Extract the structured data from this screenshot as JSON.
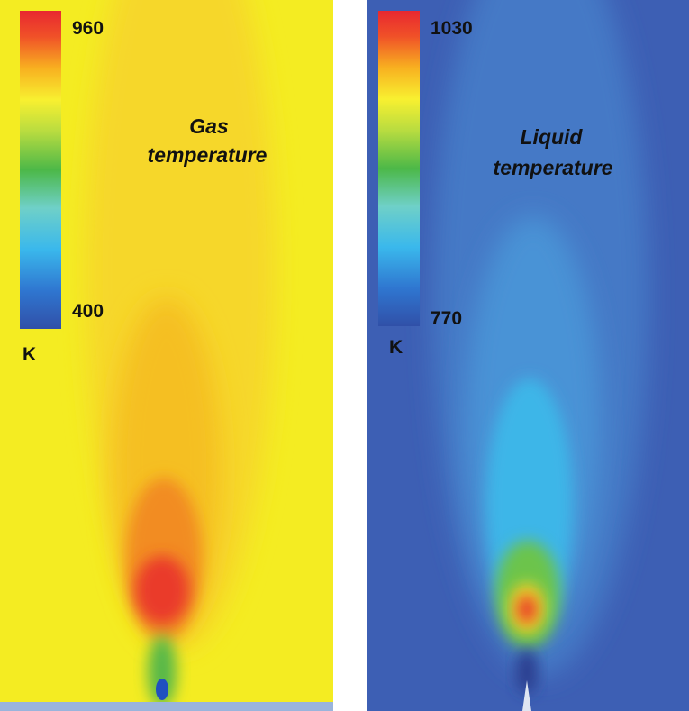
{
  "panels": [
    {
      "title": [
        "Gas",
        "temperature"
      ],
      "colorbar": {
        "max": "960",
        "min": "400",
        "unit": "K"
      }
    },
    {
      "title": [
        "Liquid",
        "temperature"
      ],
      "colorbar": {
        "max": "1030",
        "min": "770",
        "unit": "K"
      }
    }
  ]
}
